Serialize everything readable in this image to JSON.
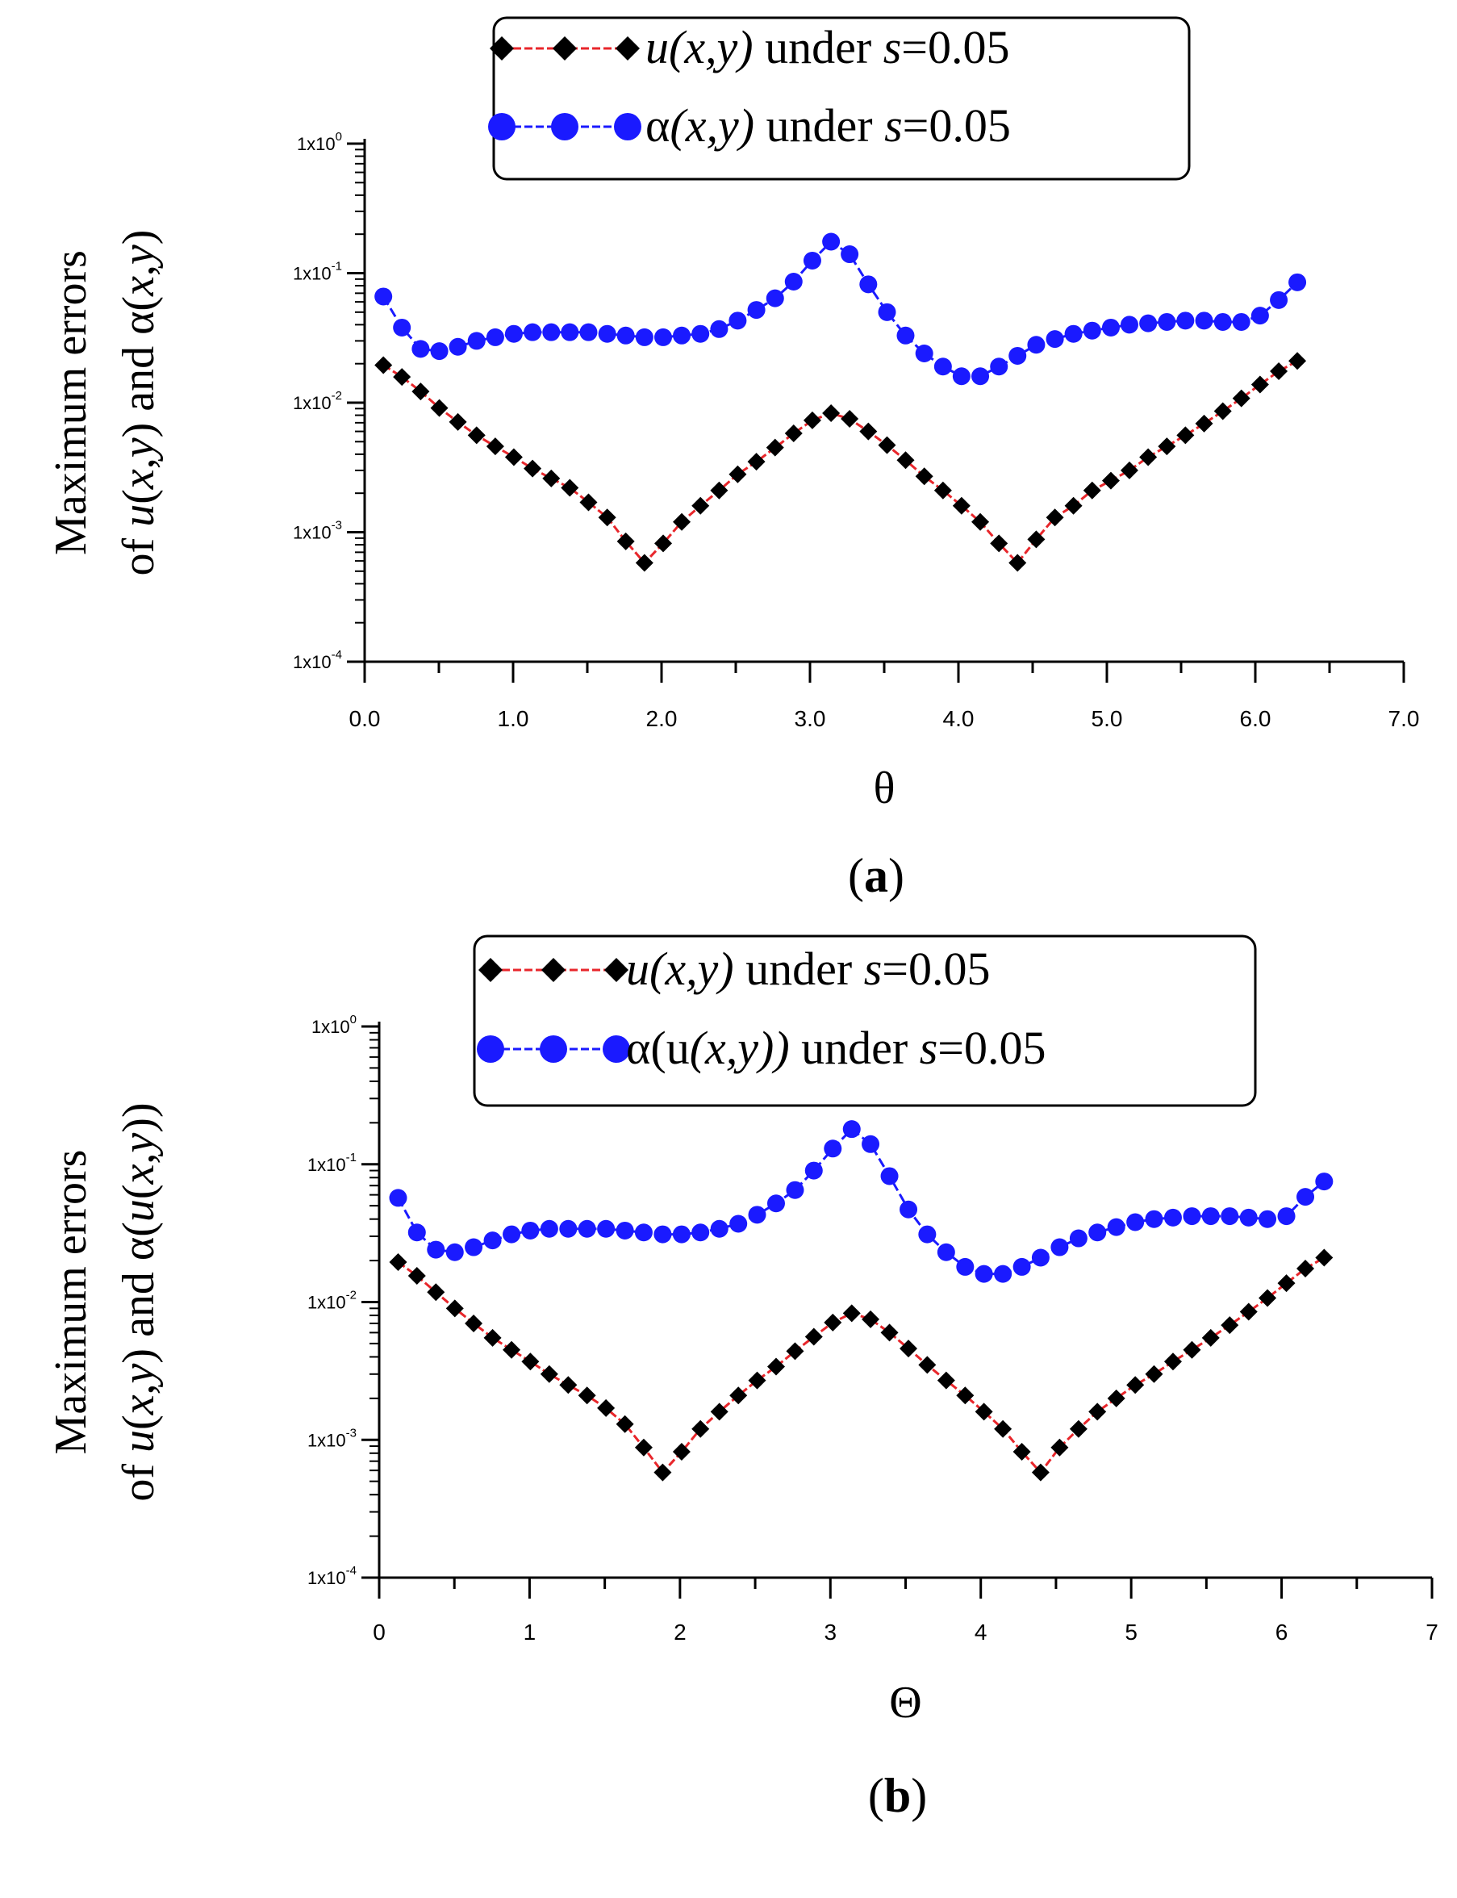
{
  "chart_data": [
    {
      "panel": "a",
      "type": "line",
      "panel_label_open": "(",
      "panel_label_letter": "a",
      "panel_label_close": ")",
      "xlabel": "θ",
      "ylabel_line1": "Maximum errors",
      "ylabel_line2_prefix": "of ",
      "ylabel_line2_u": "u",
      "ylabel_line2_mid1": "(",
      "ylabel_line2_x": "x",
      "ylabel_line2_comma": ",",
      "ylabel_line2_y": "y",
      "ylabel_line2_mid2": ") and α(",
      "ylabel_line2_x2": "x",
      "ylabel_line2_comma2": ",",
      "ylabel_line2_y2": "y",
      "ylabel_line2_end": ")",
      "xlim": [
        0,
        7
      ],
      "ylim_log10": [
        -4,
        0
      ],
      "x_ticks": [
        "0.0",
        "1.0",
        "2.0",
        "3.0",
        "4.0",
        "5.0",
        "6.0",
        "7.0"
      ],
      "y_ticks": [
        {
          "base": "1x10",
          "exp": "0"
        },
        {
          "base": "1x10",
          "exp": "-1"
        },
        {
          "base": "1x10",
          "exp": "-2"
        },
        {
          "base": "1x10",
          "exp": "-3"
        },
        {
          "base": "1x10",
          "exp": "-4"
        }
      ],
      "legend": [
        {
          "fn": "u",
          "args": "(x,y)",
          "text": " under ",
          "s": "s",
          "val": "=0.05"
        },
        {
          "fn": "α",
          "args": "(x,y)",
          "text": " under ",
          "s": "s",
          "val": "=0.05"
        }
      ],
      "series": [
        {
          "name": "u(x,y) under s=0.05",
          "marker": "diamond",
          "marker_color": "#000000",
          "line_color": "#e8262b",
          "x": [
            0.126,
            0.251,
            0.377,
            0.503,
            0.628,
            0.754,
            0.88,
            1.005,
            1.131,
            1.257,
            1.382,
            1.508,
            1.634,
            1.759,
            1.885,
            2.011,
            2.136,
            2.262,
            2.388,
            2.513,
            2.639,
            2.765,
            2.89,
            3.016,
            3.142,
            3.267,
            3.393,
            3.519,
            3.644,
            3.77,
            3.896,
            4.021,
            4.147,
            4.273,
            4.398,
            4.524,
            4.65,
            4.775,
            4.901,
            5.027,
            5.152,
            5.278,
            5.404,
            5.529,
            5.655,
            5.781,
            5.906,
            6.032,
            6.158,
            6.283
          ],
          "y": [
            0.0195,
            0.0158,
            0.0122,
            0.0091,
            0.0071,
            0.0056,
            0.0046,
            0.0038,
            0.0031,
            0.0026,
            0.0022,
            0.0017,
            0.0013,
            0.00085,
            0.00058,
            0.00082,
            0.0012,
            0.0016,
            0.0021,
            0.0028,
            0.0035,
            0.0045,
            0.0058,
            0.0073,
            0.0083,
            0.0075,
            0.006,
            0.0047,
            0.0036,
            0.0027,
            0.0021,
            0.0016,
            0.0012,
            0.00082,
            0.00058,
            0.00088,
            0.0013,
            0.0016,
            0.0021,
            0.0025,
            0.003,
            0.0038,
            0.0046,
            0.0056,
            0.0069,
            0.0086,
            0.0108,
            0.0138,
            0.0175,
            0.021
          ]
        },
        {
          "name": "α(x,y) under s=0.05",
          "marker": "circle",
          "marker_color": "#1a1aff",
          "line_color": "#1a1aff",
          "x": [
            0.126,
            0.251,
            0.377,
            0.503,
            0.628,
            0.754,
            0.88,
            1.005,
            1.131,
            1.257,
            1.382,
            1.508,
            1.634,
            1.759,
            1.885,
            2.011,
            2.136,
            2.262,
            2.388,
            2.513,
            2.639,
            2.765,
            2.89,
            3.016,
            3.142,
            3.267,
            3.393,
            3.519,
            3.644,
            3.77,
            3.896,
            4.021,
            4.147,
            4.273,
            4.398,
            4.524,
            4.65,
            4.775,
            4.901,
            5.027,
            5.152,
            5.278,
            5.404,
            5.529,
            5.655,
            5.781,
            5.906,
            6.032,
            6.158,
            6.283
          ],
          "y": [
            0.066,
            0.038,
            0.026,
            0.025,
            0.027,
            0.03,
            0.032,
            0.034,
            0.035,
            0.035,
            0.035,
            0.035,
            0.034,
            0.033,
            0.032,
            0.032,
            0.033,
            0.034,
            0.037,
            0.043,
            0.052,
            0.064,
            0.086,
            0.125,
            0.175,
            0.14,
            0.082,
            0.05,
            0.033,
            0.024,
            0.019,
            0.016,
            0.016,
            0.019,
            0.023,
            0.028,
            0.031,
            0.034,
            0.036,
            0.038,
            0.04,
            0.041,
            0.042,
            0.043,
            0.043,
            0.042,
            0.042,
            0.047,
            0.062,
            0.085
          ]
        }
      ]
    },
    {
      "panel": "b",
      "type": "line",
      "panel_label_open": "(",
      "panel_label_letter": "b",
      "panel_label_close": ")",
      "xlabel": "Θ",
      "ylabel_line1": "Maximum errors",
      "ylabel_line2_prefix": "of ",
      "ylabel_line2_u": "u",
      "ylabel_line2_mid1": "(",
      "ylabel_line2_x": "x",
      "ylabel_line2_comma": ",",
      "ylabel_line2_y": "y",
      "ylabel_line2_mid2": ") and α(",
      "ylabel_line2_u2": "u",
      "ylabel_line2_mid3": "(",
      "ylabel_line2_x2": "x",
      "ylabel_line2_comma2": ",",
      "ylabel_line2_y2": "y",
      "ylabel_line2_end": "))",
      "xlim": [
        0,
        7
      ],
      "ylim_log10": [
        -4,
        0
      ],
      "x_ticks": [
        "0",
        "1",
        "2",
        "3",
        "4",
        "5",
        "6",
        "7"
      ],
      "y_ticks": [
        {
          "base": "1x10",
          "exp": "0"
        },
        {
          "base": "1x10",
          "exp": "-1"
        },
        {
          "base": "1x10",
          "exp": "-2"
        },
        {
          "base": "1x10",
          "exp": "-3"
        },
        {
          "base": "1x10",
          "exp": "-4"
        }
      ],
      "legend": [
        {
          "fn": "u",
          "args": "(x,y)",
          "text": " under ",
          "s": "s",
          "val": "=0.05"
        },
        {
          "fn": "α(u",
          "args": "(x,y))",
          "text": " under ",
          "s": "s",
          "val": "=0.05"
        }
      ],
      "series": [
        {
          "name": "u(x,y) under s=0.05",
          "marker": "diamond",
          "marker_color": "#000000",
          "line_color": "#e8262b",
          "x": [
            0.126,
            0.251,
            0.377,
            0.503,
            0.628,
            0.754,
            0.88,
            1.005,
            1.131,
            1.257,
            1.382,
            1.508,
            1.634,
            1.759,
            1.885,
            2.011,
            2.136,
            2.262,
            2.388,
            2.513,
            2.639,
            2.765,
            2.89,
            3.016,
            3.142,
            3.267,
            3.393,
            3.519,
            3.644,
            3.77,
            3.896,
            4.021,
            4.147,
            4.273,
            4.398,
            4.524,
            4.65,
            4.775,
            4.901,
            5.027,
            5.152,
            5.278,
            5.404,
            5.529,
            5.655,
            5.781,
            5.906,
            6.032,
            6.158,
            6.283
          ],
          "y": [
            0.0195,
            0.0155,
            0.0118,
            0.009,
            0.007,
            0.0055,
            0.0045,
            0.0037,
            0.003,
            0.0025,
            0.0021,
            0.0017,
            0.0013,
            0.00088,
            0.00058,
            0.00082,
            0.0012,
            0.0016,
            0.0021,
            0.0027,
            0.0034,
            0.0044,
            0.0056,
            0.0071,
            0.0083,
            0.0075,
            0.006,
            0.0046,
            0.0035,
            0.0027,
            0.0021,
            0.0016,
            0.0012,
            0.00082,
            0.00058,
            0.00088,
            0.0012,
            0.0016,
            0.002,
            0.0025,
            0.003,
            0.0037,
            0.0045,
            0.0055,
            0.0068,
            0.0085,
            0.0107,
            0.0137,
            0.0175,
            0.021
          ]
        },
        {
          "name": "α(u(x,y)) under s=0.05",
          "marker": "circle",
          "marker_color": "#1a1aff",
          "line_color": "#1a1aff",
          "x": [
            0.126,
            0.251,
            0.377,
            0.503,
            0.628,
            0.754,
            0.88,
            1.005,
            1.131,
            1.257,
            1.382,
            1.508,
            1.634,
            1.759,
            1.885,
            2.011,
            2.136,
            2.262,
            2.388,
            2.513,
            2.639,
            2.765,
            2.89,
            3.016,
            3.142,
            3.267,
            3.393,
            3.519,
            3.644,
            3.77,
            3.896,
            4.021,
            4.147,
            4.273,
            4.398,
            4.524,
            4.65,
            4.775,
            4.901,
            5.027,
            5.152,
            5.278,
            5.404,
            5.529,
            5.655,
            5.781,
            5.906,
            6.032,
            6.158,
            6.283
          ],
          "y": [
            0.057,
            0.032,
            0.024,
            0.023,
            0.025,
            0.028,
            0.031,
            0.033,
            0.034,
            0.034,
            0.034,
            0.034,
            0.033,
            0.032,
            0.031,
            0.031,
            0.032,
            0.034,
            0.037,
            0.043,
            0.052,
            0.065,
            0.09,
            0.13,
            0.18,
            0.14,
            0.082,
            0.047,
            0.031,
            0.023,
            0.018,
            0.016,
            0.016,
            0.018,
            0.021,
            0.025,
            0.029,
            0.032,
            0.035,
            0.038,
            0.04,
            0.041,
            0.042,
            0.042,
            0.042,
            0.041,
            0.04,
            0.042,
            0.058,
            0.075
          ]
        }
      ]
    }
  ]
}
